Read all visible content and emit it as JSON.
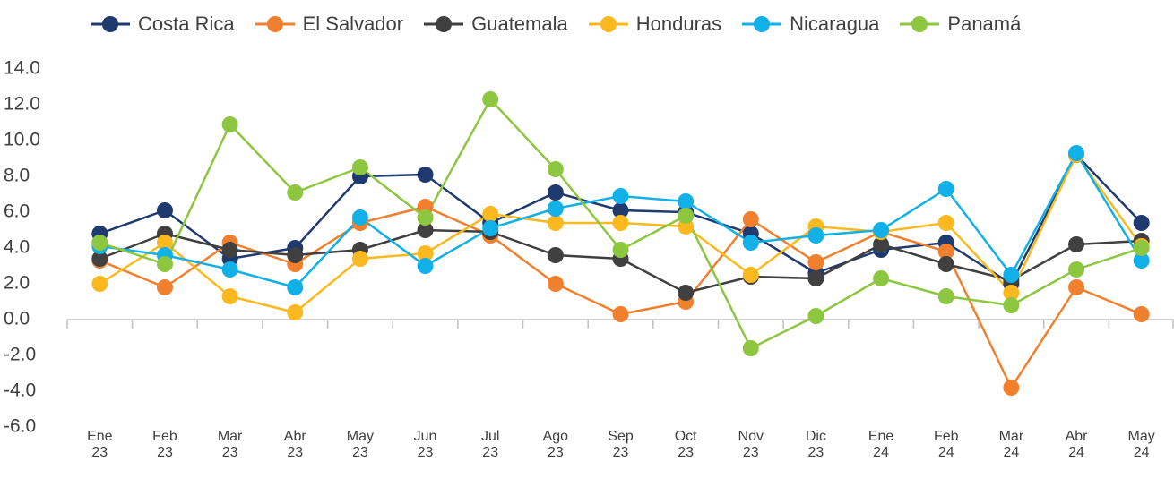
{
  "chart_data": {
    "type": "line",
    "categories": [
      "Ene 23",
      "Feb 23",
      "Mar 23",
      "Abr 23",
      "May 23",
      "Jun 23",
      "Jul 23",
      "Ago 23",
      "Sep 23",
      "Oct 23",
      "Nov 23",
      "Dic 23",
      "Ene 24",
      "Feb 24",
      "Mar 24",
      "Abr 24",
      "May 24"
    ],
    "series": [
      {
        "name": "Costa Rica",
        "color": "#1f3a6e",
        "values": [
          4.8,
          6.1,
          3.4,
          4.0,
          8.0,
          8.1,
          5.4,
          7.1,
          6.1,
          6.0,
          4.8,
          2.6,
          3.9,
          4.3,
          2.0,
          9.2,
          5.4
        ]
      },
      {
        "name": "El Salvador",
        "color": "#f07f2e",
        "values": [
          3.3,
          1.8,
          4.3,
          3.1,
          5.4,
          6.3,
          4.7,
          2.0,
          0.3,
          1.0,
          5.6,
          3.2,
          4.9,
          3.8,
          -3.8,
          1.8,
          0.3
        ]
      },
      {
        "name": "Guatemala",
        "color": "#404040",
        "values": [
          3.4,
          4.8,
          3.9,
          3.6,
          3.9,
          5.0,
          4.9,
          3.6,
          3.4,
          1.5,
          2.4,
          2.3,
          4.2,
          3.1,
          2.2,
          4.2,
          4.4
        ]
      },
      {
        "name": "Honduras",
        "color": "#fbb91f",
        "values": [
          2.0,
          4.3,
          1.3,
          0.4,
          3.4,
          3.7,
          5.9,
          5.4,
          5.4,
          5.2,
          2.5,
          5.2,
          4.9,
          5.4,
          1.5,
          9.2,
          4.1
        ]
      },
      {
        "name": "Nicaragua",
        "color": "#12b0e8",
        "values": [
          4.1,
          3.6,
          2.8,
          1.8,
          5.7,
          3.0,
          5.1,
          6.2,
          6.9,
          6.6,
          4.3,
          4.7,
          5.0,
          7.3,
          2.5,
          9.3,
          3.3
        ]
      },
      {
        "name": "Panamá",
        "color": "#8dc63f",
        "values": [
          4.3,
          3.1,
          10.9,
          7.1,
          8.5,
          5.7,
          12.3,
          8.4,
          3.9,
          5.8,
          -1.6,
          0.2,
          2.3,
          1.3,
          0.8,
          2.8,
          4.0
        ]
      }
    ],
    "ylim": [
      -6,
      14
    ],
    "yticks": [
      {
        "value": 14,
        "label": "14.0"
      },
      {
        "value": 12,
        "label": "12.0"
      },
      {
        "value": 10,
        "label": "10.0"
      },
      {
        "value": 8,
        "label": "8.0"
      },
      {
        "value": 6,
        "label": "6.0"
      },
      {
        "value": 4,
        "label": "4.0"
      },
      {
        "value": 2,
        "label": "2.0"
      },
      {
        "value": 0,
        "label": "0.0"
      },
      {
        "value": -2,
        "label": "-2.0"
      },
      {
        "value": -4,
        "label": "-4.0"
      },
      {
        "value": -6,
        "label": "-6.0"
      }
    ],
    "grid": false,
    "legend": "top"
  }
}
